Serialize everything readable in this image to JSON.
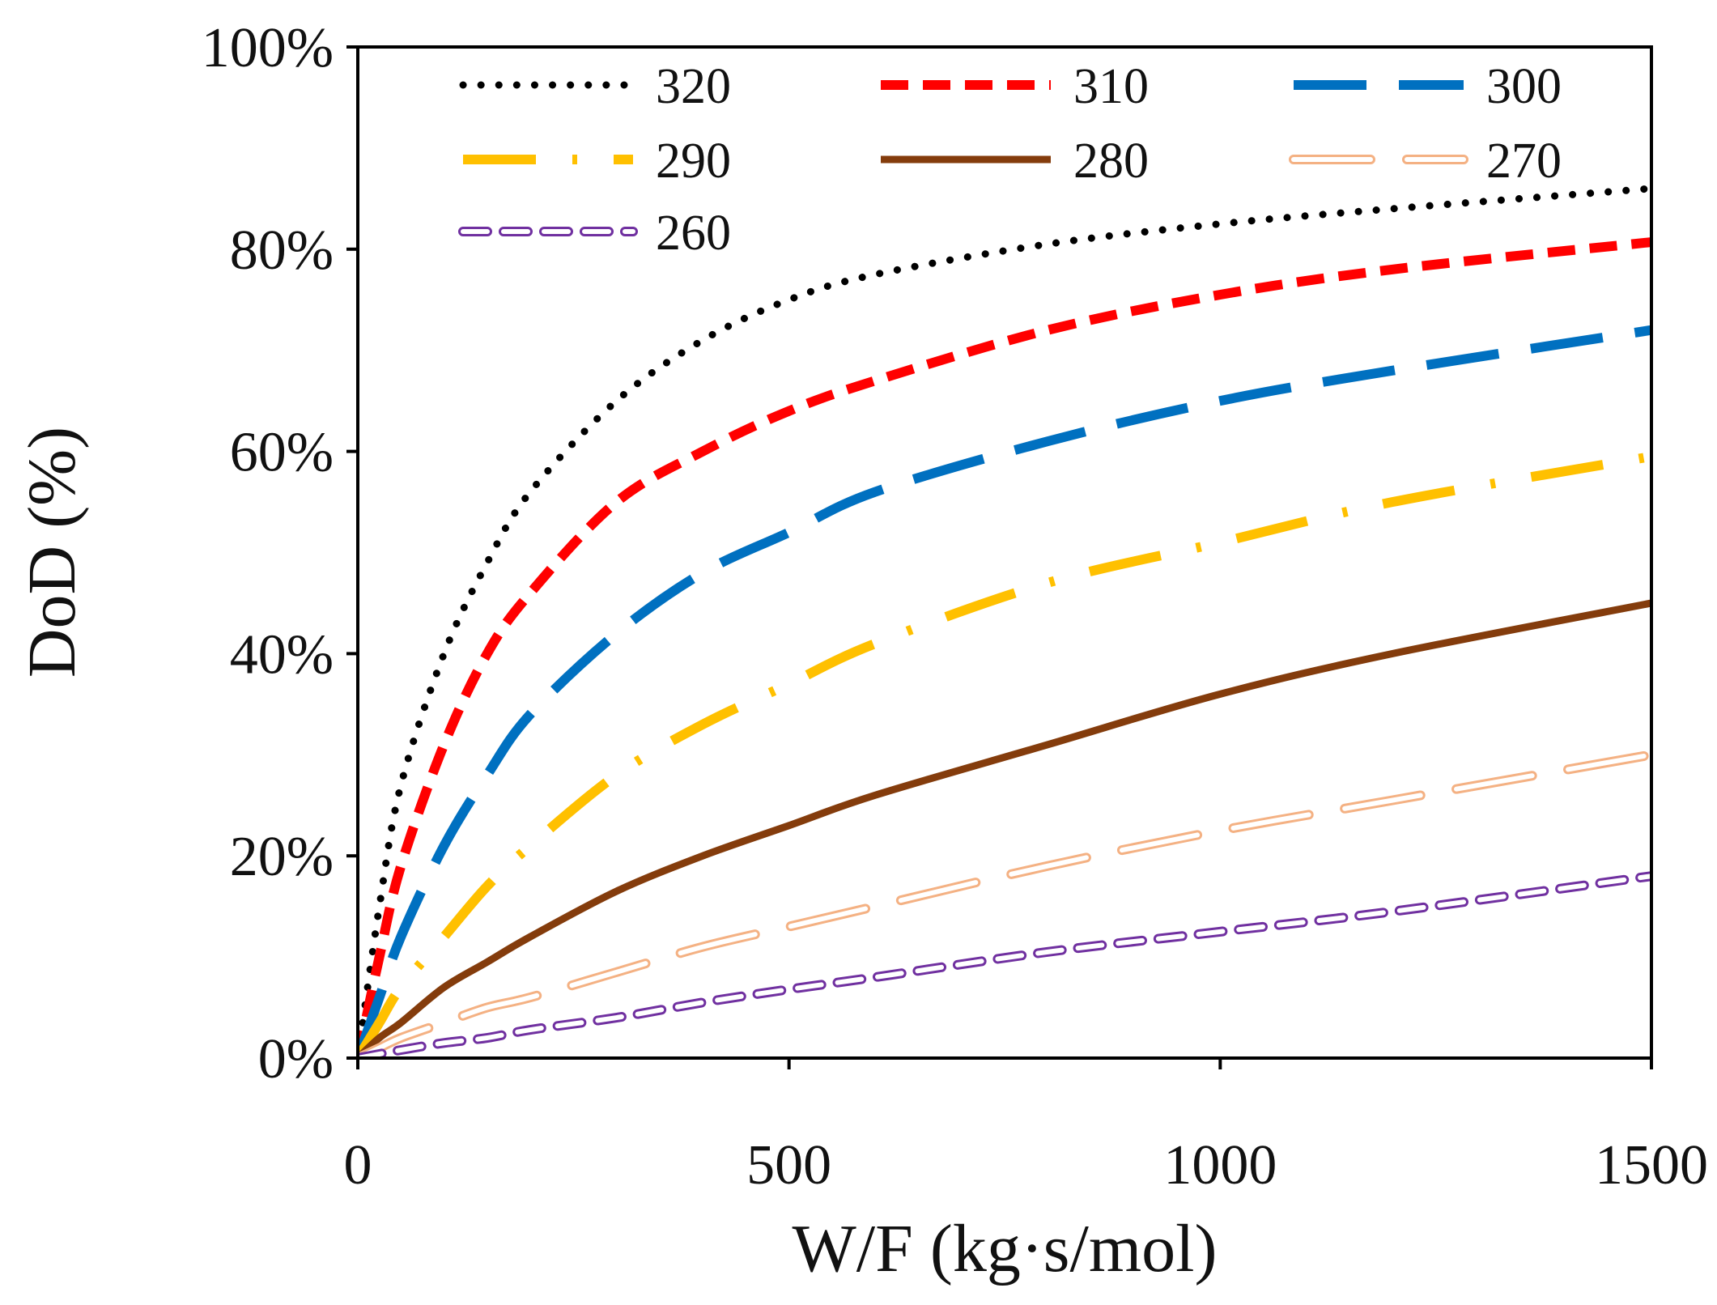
{
  "chart_data": {
    "type": "line",
    "title": "",
    "xlabel": "W/F (kg·s/mol)",
    "ylabel": "DoD (%)",
    "xlim": [
      0,
      1500
    ],
    "ylim": [
      0,
      100
    ],
    "xticks": [
      0,
      500,
      1000,
      1500
    ],
    "xtick_labels": [
      "0",
      "500",
      "1000",
      "1500"
    ],
    "yticks": [
      0,
      20,
      40,
      60,
      80,
      100
    ],
    "ytick_labels": [
      "0%",
      "20%",
      "40%",
      "60%",
      "80%",
      "100%"
    ],
    "grid": false,
    "legend_placement": "top, inside, 3 columns",
    "x": [
      0,
      25,
      50,
      100,
      150,
      200,
      300,
      400,
      500,
      600,
      800,
      1000,
      1200,
      1500
    ],
    "series": [
      {
        "name": "320",
        "color": "#000000",
        "style": "dotted",
        "values": [
          0,
          15,
          27,
          40,
          49,
          56,
          65,
          71,
          75,
          77.5,
          80.5,
          82.5,
          84,
          86
        ]
      },
      {
        "name": "310",
        "color": "#ff0000",
        "style": "dashed",
        "values": [
          0,
          10,
          19,
          31,
          40,
          46,
          55,
          60,
          64,
          67,
          72,
          75.5,
          78,
          80.7
        ]
      },
      {
        "name": "300",
        "color": "#0070c0",
        "style": "long-dash",
        "values": [
          0,
          6,
          12,
          21,
          28,
          34,
          42,
          48,
          52,
          56,
          61,
          65,
          68,
          72
        ]
      },
      {
        "name": "290",
        "color": "#ffc000",
        "style": "long-dash-dot",
        "values": [
          0,
          3.5,
          7,
          12,
          17,
          21,
          28,
          33,
          37,
          41,
          47,
          51,
          55,
          59.5
        ]
      },
      {
        "name": "280",
        "color": "#843c0c",
        "style": "solid",
        "values": [
          0,
          2,
          3.5,
          7,
          9.5,
          12,
          16.5,
          20,
          23,
          26,
          31,
          36,
          40,
          45
        ]
      },
      {
        "name": "270",
        "color": "#f4b183",
        "style": "outlined-long-dash",
        "values": [
          0,
          1,
          2,
          3.5,
          5,
          6,
          8.5,
          11,
          13,
          15,
          19,
          22.5,
          25.5,
          30
        ]
      },
      {
        "name": "260",
        "color": "#7030a0",
        "style": "outlined-dash",
        "values": [
          0,
          0.4,
          0.8,
          1.5,
          2,
          2.8,
          4,
          5.5,
          6.8,
          8,
          10.5,
          12.5,
          14.5,
          18
        ]
      }
    ]
  }
}
